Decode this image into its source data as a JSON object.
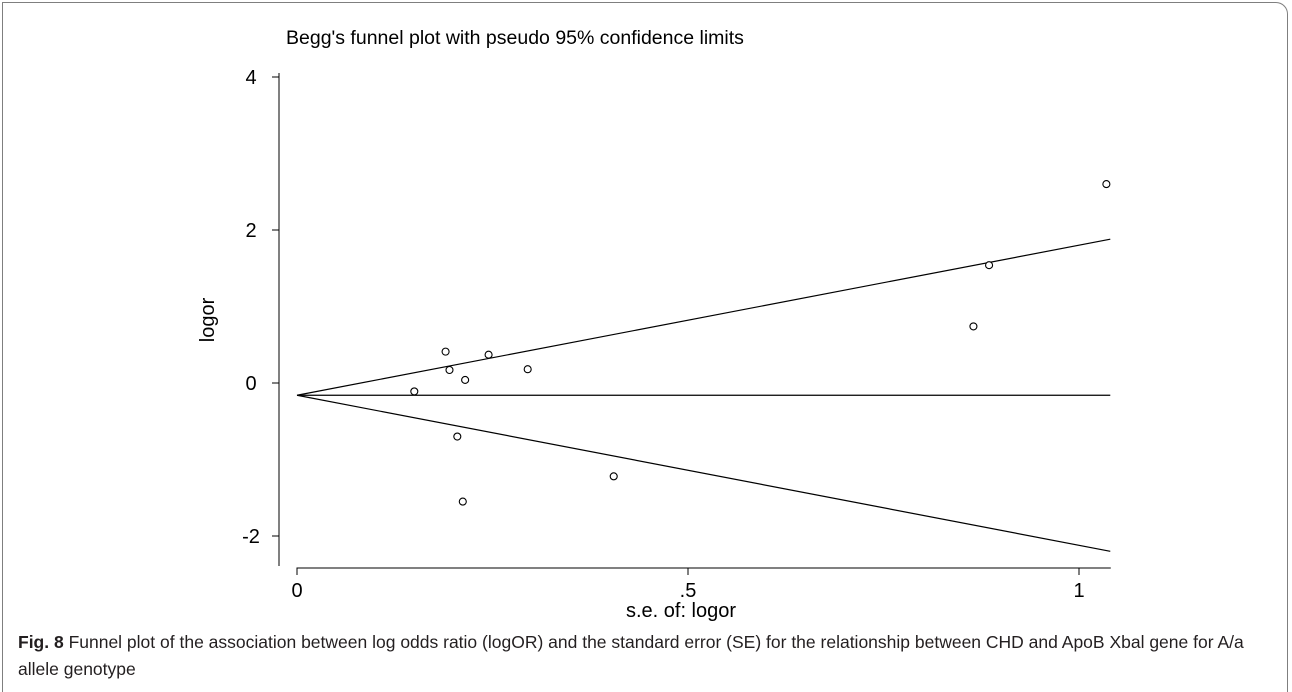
{
  "chart_data": {
    "type": "scatter",
    "title": "Begg's funnel plot with pseudo 95% confidence limits",
    "xlabel": "s.e. of: logor",
    "ylabel": "logor",
    "xlim": [
      0,
      1.04
    ],
    "ylim": [
      -2.4,
      4.2
    ],
    "x_ticks": [
      {
        "value": 0,
        "label": "0"
      },
      {
        "value": 0.5,
        "label": ".5"
      },
      {
        "value": 1,
        "label": "1"
      }
    ],
    "y_ticks": [
      {
        "value": -2,
        "label": "-2"
      },
      {
        "value": 0,
        "label": "0"
      },
      {
        "value": 2,
        "label": "2"
      },
      {
        "value": 4,
        "label": "4"
      }
    ],
    "grid": false,
    "pooled_estimate": -0.16,
    "confidence_limits": {
      "se_max": 1.04,
      "upper_at_max": 1.88,
      "lower_at_max": -2.2
    },
    "points": [
      {
        "x": 0.15,
        "y": -0.11
      },
      {
        "x": 0.19,
        "y": 0.41
      },
      {
        "x": 0.195,
        "y": 0.17
      },
      {
        "x": 0.215,
        "y": 0.04
      },
      {
        "x": 0.245,
        "y": 0.37
      },
      {
        "x": 0.295,
        "y": 0.18
      },
      {
        "x": 0.205,
        "y": -0.7
      },
      {
        "x": 0.212,
        "y": -1.55
      },
      {
        "x": 0.405,
        "y": -1.22
      },
      {
        "x": 0.865,
        "y": 0.74
      },
      {
        "x": 0.885,
        "y": 1.54
      },
      {
        "x": 1.035,
        "y": 2.6
      }
    ]
  },
  "caption": {
    "label": "Fig. 8",
    "text": " Funnel plot of the association between log odds ratio (logOR) and the standard error (SE) for the relationship between CHD and ApoB Xbal gene for A/a allele genotype"
  }
}
